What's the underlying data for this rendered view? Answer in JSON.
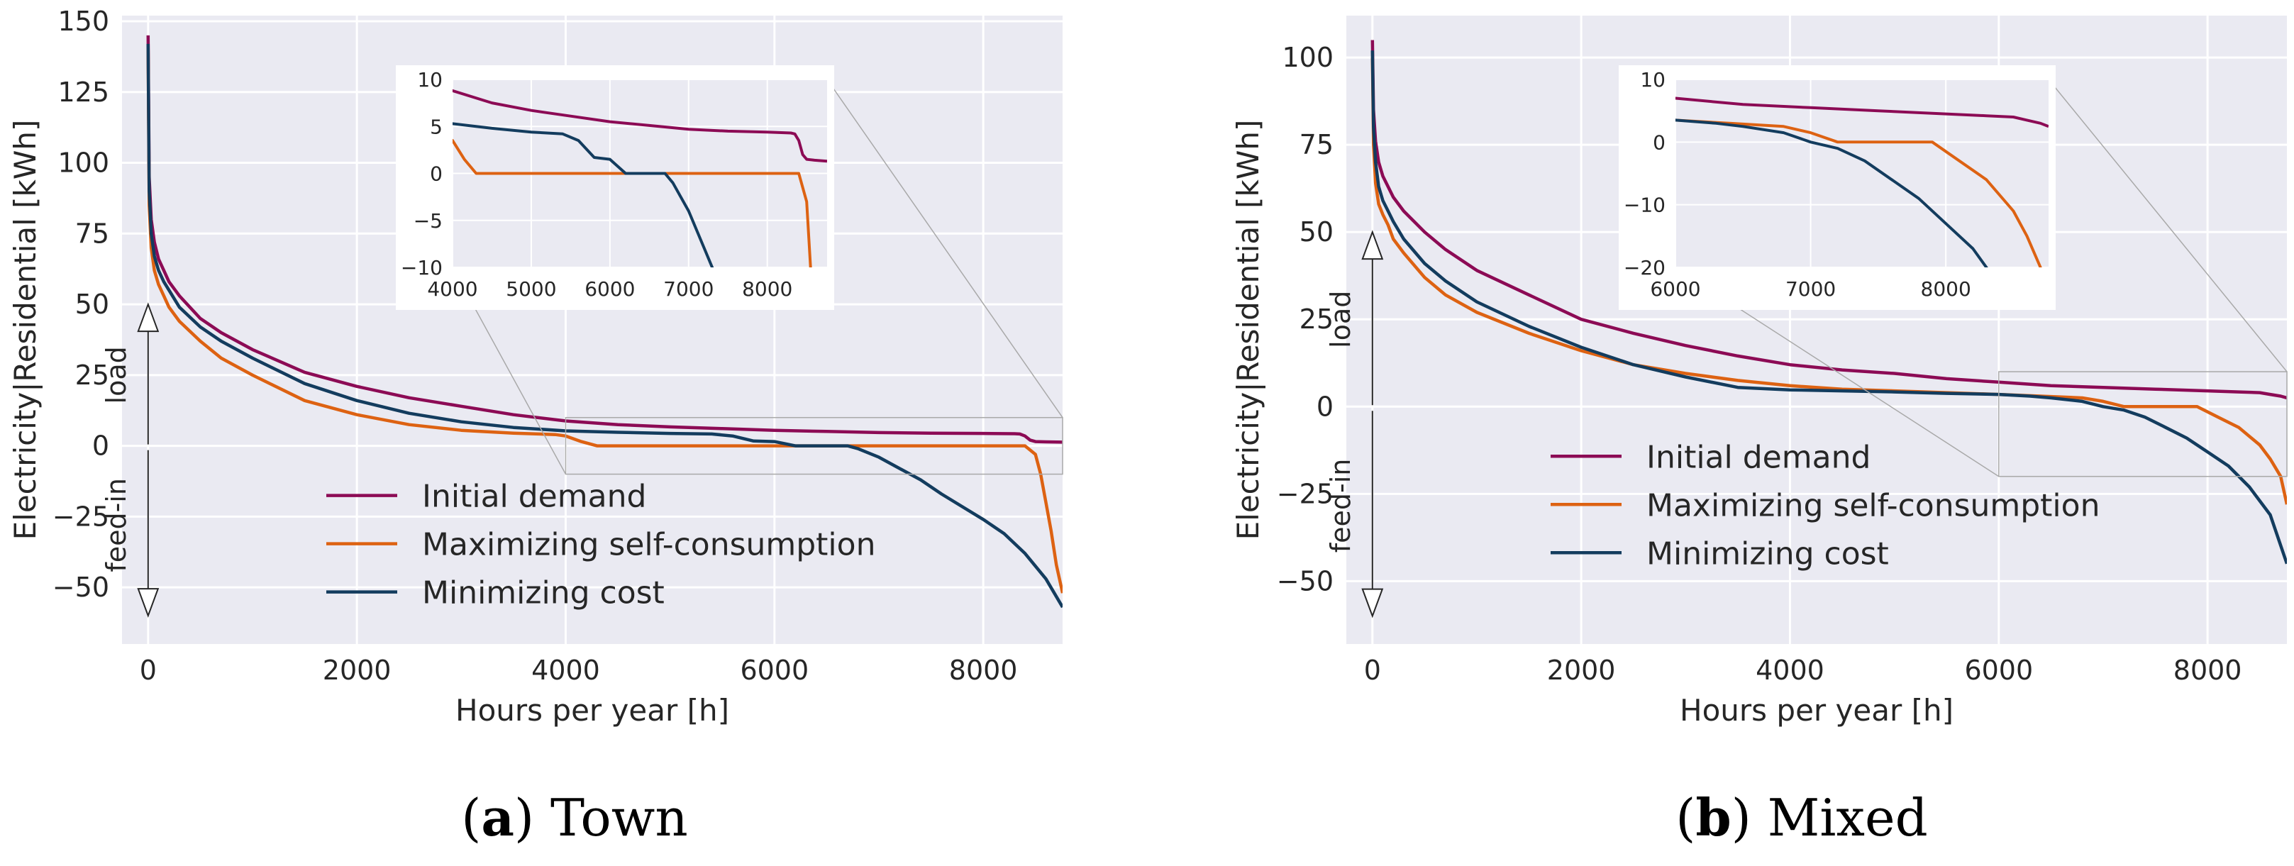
{
  "colors": {
    "background": "#eaeaf2",
    "grid": "#ffffff",
    "initial": "#8c0b55",
    "selfcons": "#dd6212",
    "mincost": "#133c5e",
    "text": "#262626",
    "connector": "#a9a9a9"
  },
  "chart_data": [
    {
      "type": "line",
      "panel": "town",
      "caption_letter": "(a)",
      "caption_text": "Town",
      "xlabel": "Hours per year [h]",
      "ylabel": "Electricity|Residential [kWh]",
      "xlim": [
        -250,
        8760
      ],
      "ylim": [
        -70,
        152
      ],
      "xticks": [
        0,
        2000,
        4000,
        6000,
        8000
      ],
      "yticks": [
        -50,
        -25,
        0,
        25,
        50,
        75,
        100,
        125,
        150
      ],
      "annotations": {
        "load": "load",
        "feed_in": "feed-in",
        "load_arrow": [
          0,
          50
        ],
        "feed_in_arrow": [
          0,
          -60
        ]
      },
      "legend": [
        "Initial demand",
        "Maximizing self-consumption",
        "Minimizing cost"
      ],
      "legend_location": "lower-center",
      "series": [
        {
          "name": "Initial demand",
          "key": "initial",
          "x": [
            0,
            10,
            30,
            60,
            100,
            150,
            200,
            300,
            500,
            700,
            1000,
            1500,
            2000,
            2500,
            3000,
            3500,
            4000,
            4500,
            5000,
            5500,
            6000,
            6500,
            7000,
            7500,
            8000,
            8300,
            8350,
            8400,
            8450,
            8500,
            8600,
            8760
          ],
          "y": [
            145,
            95,
            80,
            72,
            66,
            62,
            58,
            53,
            45,
            40,
            34,
            26,
            21,
            17,
            14,
            11,
            8.8,
            7.5,
            6.7,
            6.1,
            5.5,
            5.1,
            4.7,
            4.5,
            4.4,
            4.3,
            4.2,
            3.5,
            2,
            1.5,
            1.4,
            1.3
          ]
        },
        {
          "name": "Maximizing self-consumption",
          "key": "selfcons",
          "x": [
            0,
            10,
            30,
            60,
            100,
            150,
            200,
            300,
            500,
            700,
            1000,
            1500,
            2000,
            2500,
            3000,
            3500,
            3900,
            4000,
            4150,
            4300,
            5000,
            6000,
            7000,
            8000,
            8400,
            8500,
            8550,
            8600,
            8650,
            8700,
            8760
          ],
          "y": [
            140,
            85,
            70,
            62,
            57,
            53,
            49,
            44,
            37,
            31,
            25,
            16,
            11,
            7.5,
            5.5,
            4.5,
            4,
            3.5,
            1.5,
            0,
            0,
            0,
            0,
            0,
            0,
            -3,
            -10,
            -20,
            -30,
            -42,
            -52
          ]
        },
        {
          "name": "Minimizing cost",
          "key": "mincost",
          "x": [
            0,
            10,
            30,
            60,
            100,
            150,
            200,
            300,
            500,
            700,
            1000,
            1500,
            2000,
            2500,
            3000,
            3500,
            4000,
            4500,
            5000,
            5400,
            5600,
            5800,
            6000,
            6200,
            6700,
            6800,
            7000,
            7200,
            7400,
            7600,
            8000,
            8200,
            8400,
            8600,
            8760
          ],
          "y": [
            142,
            90,
            75,
            67,
            62,
            58,
            55,
            49,
            42,
            37,
            31,
            22,
            16,
            11.5,
            8.5,
            6.5,
            5.3,
            4.8,
            4.4,
            4.2,
            3.5,
            1.7,
            1.5,
            0,
            0,
            -1,
            -4,
            -8,
            -12,
            -17,
            -26,
            -31,
            -38,
            -47,
            -57
          ]
        }
      ],
      "inset": {
        "xlim": [
          4000,
          8760
        ],
        "ylim": [
          -10,
          10
        ],
        "xticks": [
          4000,
          5000,
          6000,
          7000,
          8000
        ],
        "yticks": [
          -10,
          -5,
          0,
          5,
          10
        ]
      }
    },
    {
      "type": "line",
      "panel": "mixed",
      "caption_letter": "(b)",
      "caption_text": "Mixed",
      "xlabel": "Hours per year [h]",
      "ylabel": "Electricity|Residential [kWh]",
      "xlim": [
        -250,
        8760
      ],
      "ylim": [
        -68,
        112
      ],
      "xticks": [
        0,
        2000,
        4000,
        6000,
        8000
      ],
      "yticks": [
        -50,
        -25,
        0,
        25,
        50,
        75,
        100
      ],
      "annotations": {
        "load": "load",
        "feed_in": "feed-in",
        "load_arrow": [
          0,
          50
        ],
        "feed_in_arrow": [
          0,
          -60
        ]
      },
      "legend": [
        "Initial demand",
        "Maximizing self-consumption",
        "Minimizing cost"
      ],
      "legend_location": "lower-center",
      "series": [
        {
          "name": "Initial demand",
          "key": "initial",
          "x": [
            0,
            10,
            30,
            60,
            100,
            150,
            200,
            300,
            500,
            700,
            1000,
            1500,
            2000,
            2500,
            3000,
            3500,
            4000,
            4500,
            5000,
            5500,
            6000,
            6500,
            7000,
            7500,
            8000,
            8300,
            8500,
            8600,
            8700,
            8760
          ],
          "y": [
            105,
            85,
            76,
            70,
            66,
            63,
            60,
            56,
            50,
            45,
            39,
            32,
            25,
            21,
            17.5,
            14.5,
            12,
            10.5,
            9.5,
            8,
            7,
            6,
            5.5,
            5,
            4.5,
            4.2,
            4,
            3.5,
            3,
            2.5
          ]
        },
        {
          "name": "Maximizing self-consumption",
          "key": "selfcons",
          "x": [
            0,
            10,
            30,
            60,
            100,
            150,
            200,
            300,
            500,
            700,
            1000,
            1500,
            2000,
            2500,
            3000,
            3500,
            4000,
            4500,
            5000,
            5500,
            6000,
            6400,
            6800,
            7000,
            7200,
            7600,
            7900,
            8100,
            8300,
            8500,
            8600,
            8700,
            8760
          ],
          "y": [
            100,
            75,
            64,
            58,
            55,
            52,
            48,
            44,
            37,
            32,
            27,
            21,
            16,
            12,
            9.5,
            7.5,
            6,
            5,
            4.5,
            4,
            3.5,
            3,
            2.5,
            1.5,
            0,
            0,
            0,
            -3,
            -6,
            -11,
            -15,
            -20,
            -28
          ]
        },
        {
          "name": "Minimizing cost",
          "key": "mincost",
          "x": [
            0,
            10,
            30,
            60,
            100,
            150,
            200,
            300,
            500,
            700,
            1000,
            1500,
            2000,
            2500,
            3000,
            3500,
            4000,
            4500,
            5000,
            5500,
            6000,
            6300,
            6500,
            6800,
            7000,
            7200,
            7400,
            7600,
            7800,
            8000,
            8200,
            8400,
            8600,
            8760
          ],
          "y": [
            102,
            80,
            70,
            63,
            59,
            56,
            53,
            48,
            41,
            36,
            30,
            23,
            17,
            12,
            8.5,
            5.5,
            4.8,
            4.5,
            4.2,
            3.8,
            3.5,
            3,
            2.5,
            1.5,
            0,
            -1,
            -3,
            -6,
            -9,
            -13,
            -17,
            -23,
            -31,
            -45
          ]
        }
      ],
      "inset": {
        "xlim": [
          6000,
          8760
        ],
        "ylim": [
          -20,
          10
        ],
        "xticks": [
          6000,
          7000,
          8000
        ],
        "yticks": [
          -20,
          -10,
          0,
          10
        ]
      }
    }
  ]
}
